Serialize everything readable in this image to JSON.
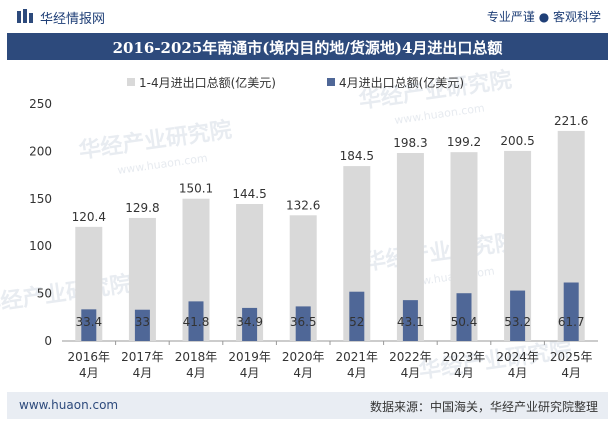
{
  "header": {
    "brand": "华经情报网",
    "slogan": "专业严谨 ● 客观科学",
    "title": "2016-2025年南通市(境内目的地/货源地)4月进出口总额"
  },
  "footer": {
    "website": "www.huaon.com",
    "source": "数据来源：中国海关，华经产业研究院整理"
  },
  "watermark": {
    "text": "华经产业研究院",
    "url": "www.huaon.com"
  },
  "colors": {
    "title_bg": "#2d4a7c",
    "series_total": "#d9d9d9",
    "series_april": "#4f6797",
    "footer_bg": "#e9edf3"
  },
  "chart_data": {
    "type": "bar",
    "categories": [
      [
        "2016年",
        "4月"
      ],
      [
        "2017年",
        "4月"
      ],
      [
        "2018年",
        "4月"
      ],
      [
        "2019年",
        "4月"
      ],
      [
        "2020年",
        "4月"
      ],
      [
        "2021年",
        "4月"
      ],
      [
        "2022年",
        "4月"
      ],
      [
        "2023年",
        "4月"
      ],
      [
        "2024年",
        "4月"
      ],
      [
        "2025年",
        "4月"
      ]
    ],
    "series": [
      {
        "name": "1-4月进出口总额(亿美元)",
        "values": [
          120.4,
          129.8,
          150.1,
          144.5,
          132.6,
          184.5,
          198.3,
          199.2,
          200.5,
          221.6
        ],
        "color": "#d9d9d9"
      },
      {
        "name": "4月进出口总额(亿美元)",
        "values": [
          33.4,
          33,
          41.8,
          34.9,
          36.5,
          52,
          43.1,
          50.4,
          53.2,
          61.7
        ],
        "color": "#4f6797"
      }
    ],
    "value_labels": {
      "total": [
        "120.4",
        "129.8",
        "150.1",
        "144.5",
        "132.6",
        "184.5",
        "198.3",
        "199.2",
        "200.5",
        "221.6"
      ],
      "april": [
        "33.4",
        "33",
        "41.8",
        "34.9",
        "36.5",
        "52",
        "43.1",
        "50.4",
        "53.2",
        "61.7"
      ]
    },
    "ylim": [
      0,
      250
    ],
    "yticks": [
      "0",
      "50",
      "100",
      "150",
      "200",
      "250"
    ],
    "ytick_values": [
      0,
      50,
      100,
      150,
      200,
      250
    ],
    "grid": false,
    "legend_position": "top"
  }
}
